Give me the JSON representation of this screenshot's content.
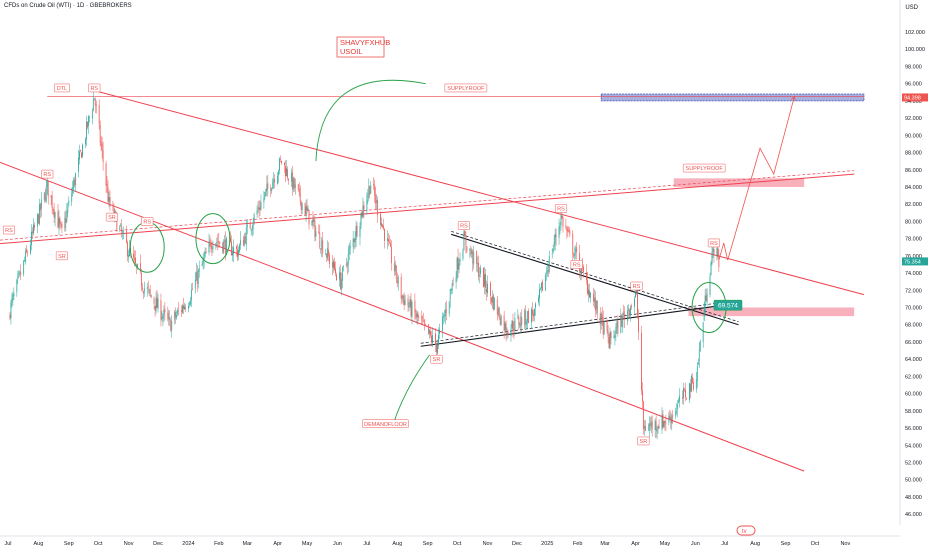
{
  "header": {
    "symbol_title": "CFDs on Crude Oil (WTI) · 1D · GBEBROKERS",
    "currency": "USD"
  },
  "watermark": [
    "SHAVYFXHUB",
    "USOIL"
  ],
  "colors": {
    "up": "#26a69a",
    "down": "#ef5350",
    "channel": "#f0414e",
    "triangle": "#131722",
    "ellipse": "#27a147",
    "supply_zone": "#3f51b5",
    "price_badge_current": "#26a69a",
    "price_badge_level": "#ef5350",
    "arrow": "#ef5350"
  },
  "chart_data": {
    "type": "candlestick",
    "title": "",
    "xlabel": "",
    "ylabel": "",
    "ylim": [
      44,
      104
    ],
    "grid": false,
    "x_ticks": [
      "Jul",
      "Aug",
      "Sep",
      "Oct",
      "Nov",
      "Dec",
      "2024",
      "Feb",
      "Mar",
      "Apr",
      "May",
      "Jun",
      "Jul",
      "Aug",
      "Sep",
      "Oct",
      "Nov",
      "Dec",
      "2025",
      "Feb",
      "Mar",
      "Apr",
      "May",
      "Jun",
      "Jul",
      "Aug",
      "Sep",
      "Oct",
      "Nov"
    ],
    "y_ticks": [
      "46.000",
      "48.000",
      "50.000",
      "52.000",
      "54.000",
      "56.000",
      "58.000",
      "60.000",
      "62.000",
      "64.000",
      "66.000",
      "68.000",
      "70.000",
      "72.000",
      "74.000",
      "76.000",
      "78.000",
      "80.000",
      "82.000",
      "84.000",
      "86.000",
      "88.000",
      "90.000",
      "92.000",
      "94.000",
      "96.000",
      "98.000",
      "100.000",
      "102.000"
    ],
    "price_badges": [
      {
        "value": 94.398,
        "label": "94.398"
      },
      {
        "value": 75.354,
        "label": "75.354"
      }
    ],
    "current_price_box": {
      "label": "69.574",
      "value": 69.574
    },
    "anchors": [
      {
        "date": "2023-07-01",
        "price": 69.0
      },
      {
        "date": "2023-08-10",
        "price": 84.0
      },
      {
        "date": "2023-08-25",
        "price": 78.5
      },
      {
        "date": "2023-09-27",
        "price": 94.5
      },
      {
        "date": "2023-10-12",
        "price": 82.0
      },
      {
        "date": "2023-11-16",
        "price": 72.5
      },
      {
        "date": "2023-12-13",
        "price": 68.0
      },
      {
        "date": "2024-01-01",
        "price": 71.0
      },
      {
        "date": "2024-01-26",
        "price": 78.0
      },
      {
        "date": "2024-02-20",
        "price": 76.5
      },
      {
        "date": "2024-04-05",
        "price": 87.0
      },
      {
        "date": "2024-06-04",
        "price": 73.0
      },
      {
        "date": "2024-07-05",
        "price": 84.5
      },
      {
        "date": "2024-08-05",
        "price": 71.5
      },
      {
        "date": "2024-09-10",
        "price": 65.5
      },
      {
        "date": "2024-10-08",
        "price": 78.0
      },
      {
        "date": "2024-11-20",
        "price": 67.5
      },
      {
        "date": "2024-12-20",
        "price": 69.5
      },
      {
        "date": "2025-01-15",
        "price": 80.5
      },
      {
        "date": "2025-03-05",
        "price": 66.0
      },
      {
        "date": "2025-04-02",
        "price": 71.5
      },
      {
        "date": "2025-04-09",
        "price": 56.0
      },
      {
        "date": "2025-05-05",
        "price": 57.0
      },
      {
        "date": "2025-06-02",
        "price": 62.0
      },
      {
        "date": "2025-06-13",
        "price": 72.5
      },
      {
        "date": "2025-06-20",
        "price": 77.0
      },
      {
        "date": "2025-06-25",
        "price": 75.354
      }
    ],
    "lines": [
      {
        "name": "upper-channel",
        "kind": "channel",
        "points": [
          {
            "date": "2023-09-27",
            "price": 95.2
          },
          {
            "date": "2025-11-20",
            "price": 71.5
          }
        ]
      },
      {
        "name": "lower-channel",
        "kind": "channel",
        "points": [
          {
            "date": "2023-07-01",
            "price": 86.5
          },
          {
            "date": "2025-09-20",
            "price": 51.0
          }
        ]
      },
      {
        "name": "rising-line",
        "kind": "channel",
        "points": [
          {
            "date": "2023-07-01",
            "price": 77.5
          },
          {
            "date": "2025-11-10",
            "price": 85.5
          }
        ]
      },
      {
        "name": "supply-roof-top",
        "kind": "thin",
        "points": [
          {
            "date": "2023-08-10",
            "price": 94.5
          },
          {
            "date": "2025-11-20",
            "price": 94.5
          }
        ]
      },
      {
        "name": "triangle-upper",
        "kind": "triangle",
        "points": [
          {
            "date": "2024-09-25",
            "price": 78.5
          },
          {
            "date": "2025-07-15",
            "price": 68.0
          }
        ]
      },
      {
        "name": "triangle-lower",
        "kind": "triangle",
        "points": [
          {
            "date": "2024-08-25",
            "price": 65.5
          },
          {
            "date": "2025-07-15",
            "price": 70.5
          }
        ]
      }
    ],
    "zones": [
      {
        "name": "supply-zone-1",
        "kind": "supply",
        "from": "2025-02-25",
        "to": "2025-11-20",
        "low": 94.0,
        "high": 94.8
      },
      {
        "name": "supply-zone-2",
        "kind": "pink",
        "from": "2025-05-10",
        "to": "2025-09-20",
        "low": 84.0,
        "high": 85.0
      },
      {
        "name": "demand-zone",
        "kind": "pink",
        "from": "2025-05-25",
        "to": "2025-11-10",
        "low": 69.0,
        "high": 70.0
      }
    ],
    "annotations": [
      {
        "label": "DTL",
        "date": "2023-08-25",
        "price": 95.5
      },
      {
        "label": "RS",
        "date": "2023-09-27",
        "price": 95.5
      },
      {
        "label": "SUPPLYROOF",
        "date": "2024-10-10",
        "price": 95.5
      },
      {
        "label": "SUPPLYROOF",
        "date": "2025-06-10",
        "price": 86.2
      },
      {
        "label": "RS",
        "date": "2023-07-02",
        "price": 79.0
      },
      {
        "label": "SR",
        "date": "2023-08-25",
        "price": 76.0
      },
      {
        "label": "RS",
        "date": "2023-08-10",
        "price": 85.5
      },
      {
        "label": "SR",
        "date": "2023-10-15",
        "price": 80.5
      },
      {
        "label": "RS",
        "date": "2023-11-20",
        "price": 80.0
      },
      {
        "label": "RS",
        "date": "2024-10-08",
        "price": 79.5
      },
      {
        "label": "SR",
        "date": "2024-09-10",
        "price": 64.0
      },
      {
        "label": "RS",
        "date": "2025-01-15",
        "price": 81.5
      },
      {
        "label": "RS",
        "date": "2025-01-31",
        "price": 75.0
      },
      {
        "label": "RS",
        "date": "2025-04-02",
        "price": 72.5
      },
      {
        "label": "SR",
        "date": "2025-04-09",
        "price": 54.5
      },
      {
        "label": "RS",
        "date": "2025-06-20",
        "price": 77.5
      },
      {
        "label": "DEMANDFLOOR",
        "date": "2024-07-20",
        "price": 56.5
      }
    ],
    "ellipses": [
      {
        "date": "2023-11-20",
        "price": 77.0
      },
      {
        "date": "2024-01-26",
        "price": 78.0
      },
      {
        "date": "2025-06-15",
        "price": 70.0
      }
    ],
    "curves": [
      {
        "name": "supply-curve",
        "from": {
          "date": "2024-05-10",
          "price": 87.0
        },
        "to": {
          "date": "2024-08-30",
          "price": 96.0
        }
      },
      {
        "name": "demand-curve",
        "from": {
          "date": "2024-09-03",
          "price": 64.5
        },
        "to": {
          "date": "2024-07-28",
          "price": 56.5
        }
      }
    ],
    "projection": [
      {
        "date": "2025-06-25",
        "price": 75.5
      },
      {
        "date": "2025-06-30",
        "price": 77.5
      },
      {
        "date": "2025-07-04",
        "price": 75.5
      },
      {
        "date": "2025-08-06",
        "price": 88.5
      },
      {
        "date": "2025-08-20",
        "price": 85.5
      },
      {
        "date": "2025-09-10",
        "price": 94.5
      }
    ]
  }
}
